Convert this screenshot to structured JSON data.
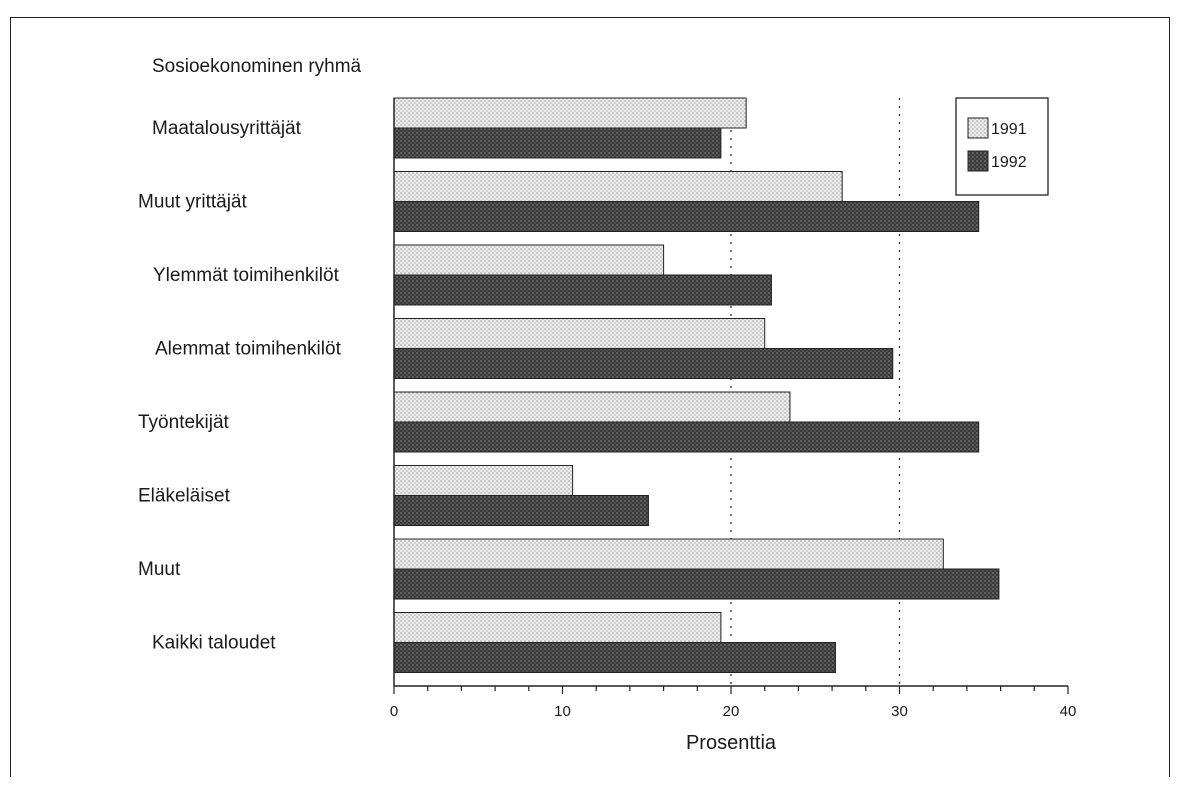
{
  "chart_data": {
    "type": "bar",
    "orientation": "horizontal",
    "title": "Sosioekonominen ryhmä",
    "xlabel": "Prosenttia",
    "categories": [
      "Maatalousyrittäjät",
      "Muut yrittäjät",
      "Ylemmät toimihenkilöt",
      "Alemmat toimihenkilöt",
      "Työntekijät",
      "Eläkeläiset",
      "Muut",
      "Kaikki taloudet"
    ],
    "series": [
      {
        "name": "1991",
        "color": "#e4e4e4",
        "values": [
          20.9,
          26.6,
          16.0,
          22.0,
          23.5,
          10.6,
          32.6,
          19.4
        ]
      },
      {
        "name": "1992",
        "color": "#4a4a4a",
        "values": [
          19.4,
          34.7,
          22.4,
          29.6,
          34.7,
          15.1,
          35.9,
          26.2
        ]
      }
    ],
    "xlim": [
      0,
      40
    ],
    "xticks": [
      0,
      10,
      20,
      30,
      40
    ],
    "gridlines_at": [
      20,
      30
    ],
    "legend": "top-right"
  }
}
